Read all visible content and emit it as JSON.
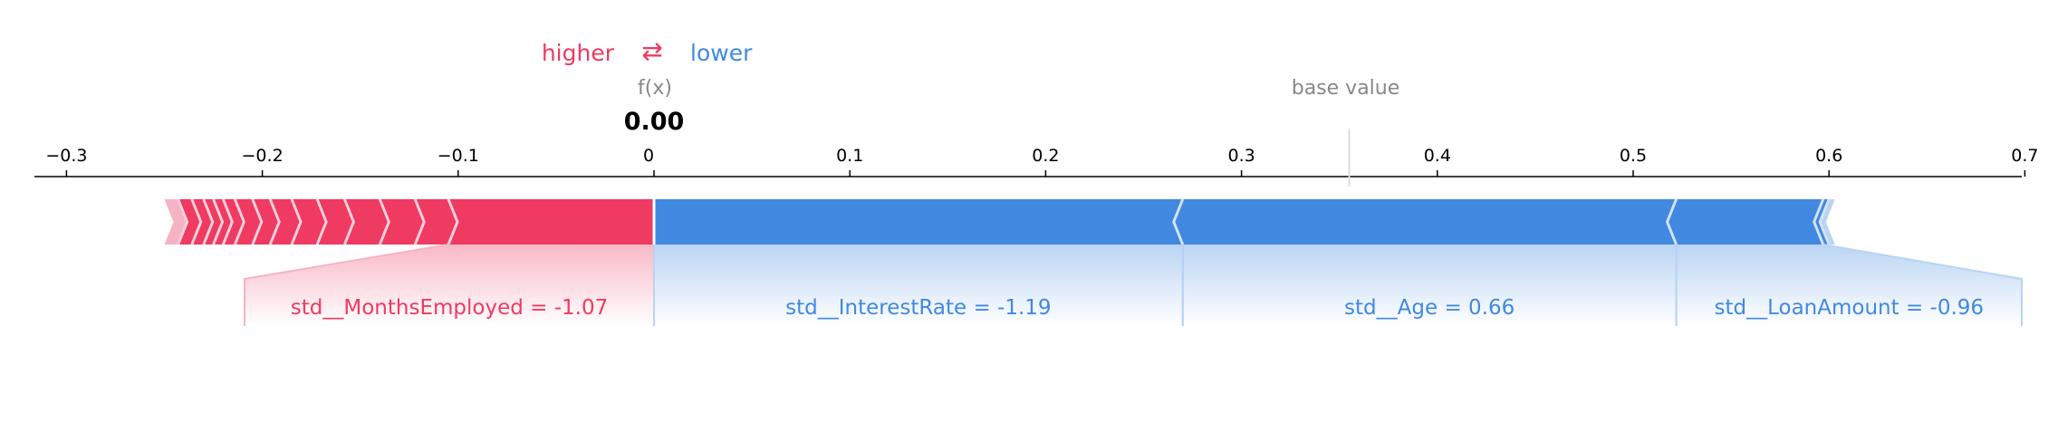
{
  "chart_data": {
    "type": "force",
    "legend": {
      "higher": "higher",
      "arrow": "⇄",
      "lower": "lower"
    },
    "fx_label": "f(x)",
    "fx_value": "0.00",
    "base_value_label": "base value",
    "base_value": 0.355,
    "xlim": [
      -0.315,
      0.7
    ],
    "ticks": [
      -0.3,
      -0.2,
      -0.1,
      0,
      0.1,
      0.2,
      0.3,
      0.4,
      0.5,
      0.6,
      0.7
    ],
    "tick_labels": [
      "−0.3",
      "−0.2",
      "−0.1",
      "0",
      "0.1",
      "0.2",
      "0.3",
      "0.4",
      "0.5",
      "0.6",
      "0.7"
    ],
    "positive_segments": [
      -0.25,
      -0.243,
      -0.236,
      -0.23,
      -0.225,
      -0.22,
      -0.214,
      -0.205,
      -0.196,
      -0.185,
      -0.172,
      -0.158,
      -0.14,
      -0.122,
      -0.105,
      0.0
    ],
    "negative_segments": [
      0.0,
      0.27,
      0.522,
      0.597,
      0.6,
      0.603
    ],
    "features": [
      {
        "label": "std__MonthsEmployed = -1.07",
        "side": "higher",
        "from": -0.105,
        "to": 0.0
      },
      {
        "label": "std__InterestRate = -1.19",
        "side": "lower",
        "from": 0.0,
        "to": 0.27
      },
      {
        "label": "std__Age = 0.66",
        "side": "lower",
        "from": 0.27,
        "to": 0.522
      },
      {
        "label": "std__LoanAmount = -0.96",
        "side": "lower",
        "from": 0.522,
        "to": 0.597
      }
    ],
    "colors": {
      "higher": "#ef3a61",
      "lower": "#4189e0",
      "higher_light": "#f6b3c5",
      "lower_light": "#b9d3f2",
      "axis": "#000000",
      "muted": "#888888"
    }
  }
}
